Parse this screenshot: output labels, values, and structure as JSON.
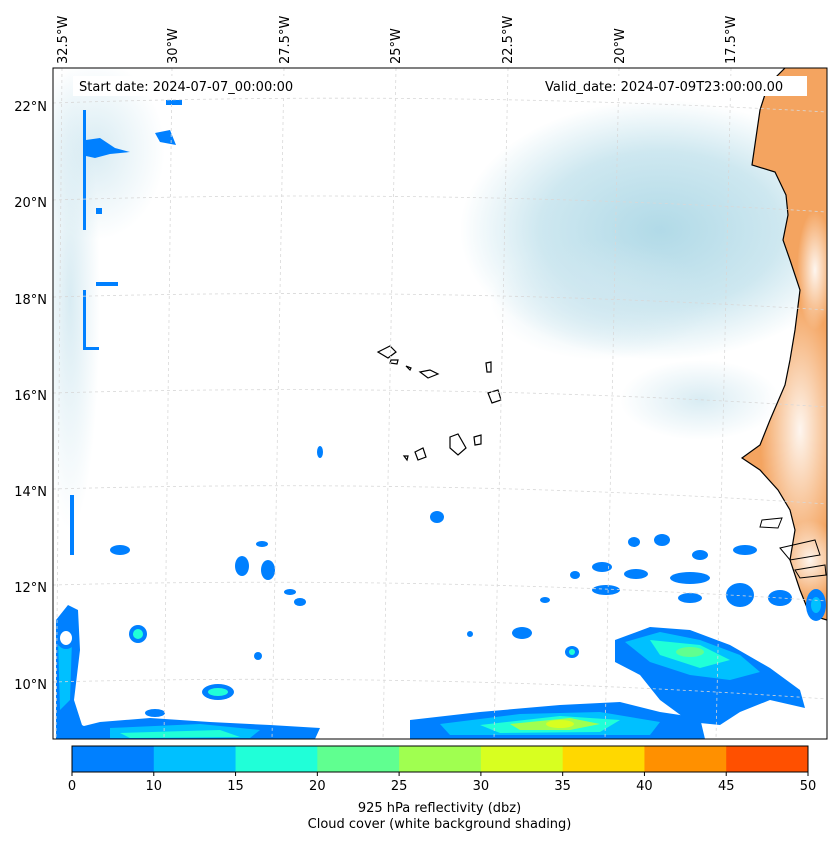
{
  "map": {
    "start_date": "Start date: 2024-07-07_00:00:00",
    "valid_date": "Valid_date: 2024-07-09T23:00:00.00",
    "lon_labels": [
      "32.5°W",
      "30°W",
      "27.5°W",
      "25°W",
      "22.5°W",
      "20°W",
      "17.5°W"
    ],
    "lat_labels": [
      "22°N",
      "20°N",
      "18°N",
      "16°N",
      "14°N",
      "12°N",
      "10°N"
    ],
    "land_color": "#f4a460",
    "cloud_color": "#add8e6",
    "reflectivity_color": "#0080ff"
  },
  "colorbar": {
    "ticks": [
      "0",
      "10",
      "15",
      "20",
      "25",
      "30",
      "35",
      "40",
      "45",
      "50"
    ],
    "colors": [
      "#0080ff",
      "#00c0ff",
      "#20ffd8",
      "#60ff90",
      "#a0ff50",
      "#d8ff20",
      "#ffd800",
      "#ff9000",
      "#ff5000"
    ],
    "label_line1": "925 hPa reflectivity (dbz)",
    "label_line2": "Cloud cover (white background shading)"
  }
}
